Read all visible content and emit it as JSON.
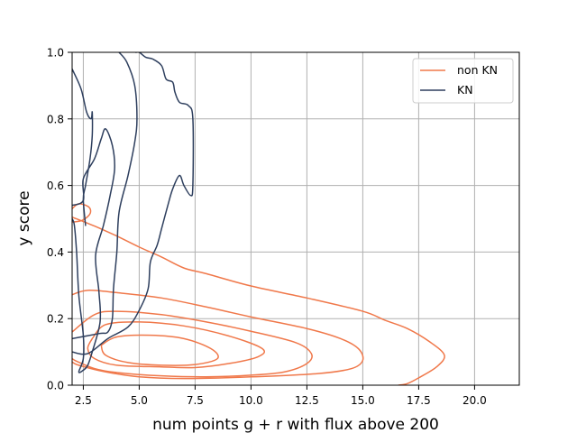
{
  "chart_data": {
    "type": "line",
    "subtype": "kde-contour",
    "xlabel": "num points g + r with flux above 200",
    "ylabel": "y score",
    "xlim": [
      2,
      22
    ],
    "ylim": [
      0,
      1
    ],
    "xticks": [
      "2.5",
      "5.0",
      "7.5",
      "10.0",
      "12.5",
      "15.0",
      "17.5",
      "20.0"
    ],
    "yticks": [
      "0.0",
      "0.2",
      "0.4",
      "0.6",
      "0.8",
      "1.0"
    ],
    "grid": true,
    "legend": {
      "placement": "top-right",
      "entries": [
        "non KN",
        "KN"
      ]
    },
    "series": [
      {
        "name": "non KN",
        "color": "#f0784a",
        "contours": [
          [
            [
              2,
              0.505
            ],
            [
              3,
              0.478
            ],
            [
              4,
              0.448
            ],
            [
              5,
              0.415
            ],
            [
              6,
              0.385
            ],
            [
              7,
              0.352
            ],
            [
              8,
              0.335
            ],
            [
              10,
              0.298
            ],
            [
              12.5,
              0.262
            ],
            [
              15,
              0.222
            ],
            [
              16,
              0.195
            ],
            [
              17,
              0.17
            ],
            [
              18,
              0.13
            ],
            [
              18.65,
              0.09
            ],
            [
              18.3,
              0.055
            ],
            [
              17.5,
              0.022
            ],
            [
              17,
              0.005
            ],
            [
              16.6,
              0
            ]
          ],
          [
            [
              2,
              0.272
            ],
            [
              2.7,
              0.285
            ],
            [
              4,
              0.278
            ],
            [
              6,
              0.262
            ],
            [
              8,
              0.235
            ],
            [
              10,
              0.205
            ],
            [
              12.5,
              0.17
            ],
            [
              14,
              0.14
            ],
            [
              14.8,
              0.11
            ],
            [
              15,
              0.075
            ],
            [
              14.5,
              0.05
            ],
            [
              13,
              0.035
            ],
            [
              10,
              0.025
            ],
            [
              7,
              0.02
            ],
            [
              5,
              0.025
            ],
            [
              3.5,
              0.04
            ],
            [
              2.3,
              0.06
            ],
            [
              2,
              0.07
            ]
          ],
          [
            [
              2,
              0.16
            ],
            [
              3,
              0.212
            ],
            [
              4,
              0.222
            ],
            [
              6,
              0.212
            ],
            [
              8,
              0.19
            ],
            [
              10,
              0.162
            ],
            [
              12,
              0.128
            ],
            [
              12.7,
              0.095
            ],
            [
              12.5,
              0.065
            ],
            [
              11.5,
              0.04
            ],
            [
              10,
              0.03
            ],
            [
              8,
              0.025
            ],
            [
              6,
              0.028
            ],
            [
              4,
              0.038
            ],
            [
              3,
              0.05
            ],
            [
              2.2,
              0.072
            ],
            [
              2,
              0.08
            ]
          ],
          [
            [
              2.9,
              0.14
            ],
            [
              3.5,
              0.182
            ],
            [
              5,
              0.19
            ],
            [
              7,
              0.178
            ],
            [
              9,
              0.148
            ],
            [
              10.5,
              0.11
            ],
            [
              10.3,
              0.085
            ],
            [
              9,
              0.065
            ],
            [
              7.5,
              0.053
            ],
            [
              6,
              0.055
            ],
            [
              4,
              0.06
            ],
            [
              3,
              0.08
            ],
            [
              2.7,
              0.11
            ],
            [
              2.9,
              0.14
            ]
          ],
          [
            [
              3.3,
              0.12
            ],
            [
              4,
              0.145
            ],
            [
              5.5,
              0.15
            ],
            [
              7,
              0.14
            ],
            [
              8.2,
              0.11
            ],
            [
              8.5,
              0.08
            ],
            [
              7.5,
              0.062
            ],
            [
              6,
              0.06
            ],
            [
              4.5,
              0.068
            ],
            [
              3.5,
              0.09
            ],
            [
              3.3,
              0.12
            ]
          ],
          [
            [
              2,
              0.53
            ],
            [
              2.3,
              0.545
            ],
            [
              2.75,
              0.535
            ],
            [
              2.8,
              0.515
            ],
            [
              2.45,
              0.495
            ],
            [
              2,
              0.49
            ]
          ]
        ]
      },
      {
        "name": "KN",
        "color": "#2e3f5e",
        "contours": [
          [
            [
              2,
              0.14
            ],
            [
              3.2,
              0.155
            ],
            [
              3.6,
              0.16
            ],
            [
              3.8,
              0.2
            ],
            [
              3.85,
              0.29
            ],
            [
              4,
              0.4
            ],
            [
              4.1,
              0.52
            ],
            [
              4.5,
              0.63
            ],
            [
              4.8,
              0.73
            ],
            [
              4.9,
              0.8
            ],
            [
              4.8,
              0.9
            ],
            [
              4.45,
              0.97
            ],
            [
              4.1,
              1.0
            ]
          ],
          [
            [
              2,
              0.1
            ],
            [
              2.7,
              0.095
            ],
            [
              3.6,
              0.14
            ],
            [
              4.5,
              0.175
            ],
            [
              5,
              0.225
            ],
            [
              5.4,
              0.29
            ],
            [
              5.5,
              0.37
            ],
            [
              5.8,
              0.42
            ],
            [
              6,
              0.47
            ],
            [
              6.3,
              0.545
            ],
            [
              6.5,
              0.59
            ],
            [
              6.8,
              0.63
            ],
            [
              7,
              0.6
            ],
            [
              7.3,
              0.57
            ],
            [
              7.4,
              0.6
            ],
            [
              7.4,
              0.8
            ],
            [
              7.2,
              0.84
            ],
            [
              6.8,
              0.85
            ],
            [
              6.6,
              0.88
            ],
            [
              6.5,
              0.91
            ],
            [
              6.2,
              0.92
            ],
            [
              6,
              0.96
            ],
            [
              5.6,
              0.98
            ],
            [
              5.3,
              0.985
            ],
            [
              5,
              1.0
            ],
            [
              4.85,
              1.0
            ]
          ],
          [
            [
              2,
              0.54
            ],
            [
              2.5,
              0.555
            ],
            [
              2.5,
              0.62
            ],
            [
              3,
              0.68
            ],
            [
              3.3,
              0.74
            ],
            [
              3.5,
              0.77
            ],
            [
              3.8,
              0.72
            ],
            [
              3.9,
              0.65
            ],
            [
              3.7,
              0.57
            ],
            [
              3.4,
              0.48
            ],
            [
              3.05,
              0.39
            ],
            [
              3.2,
              0.28
            ],
            [
              3.25,
              0.19
            ],
            [
              2.9,
              0.1
            ],
            [
              2.7,
              0.06
            ],
            [
              2.5,
              0.045
            ],
            [
              2.3,
              0.04
            ],
            [
              2.5,
              0.08
            ],
            [
              2.5,
              0.15
            ],
            [
              2.3,
              0.27
            ],
            [
              2.2,
              0.4
            ],
            [
              2.1,
              0.48
            ],
            [
              2,
              0.5
            ]
          ],
          [
            [
              2,
              0.95
            ],
            [
              2.4,
              0.89
            ],
            [
              2.65,
              0.82
            ],
            [
              2.85,
              0.8
            ],
            [
              2.9,
              0.82
            ],
            [
              2.9,
              0.75
            ],
            [
              2.8,
              0.68
            ],
            [
              2.6,
              0.6
            ],
            [
              2.5,
              0.56
            ],
            [
              2.6,
              0.48
            ]
          ]
        ]
      }
    ]
  }
}
